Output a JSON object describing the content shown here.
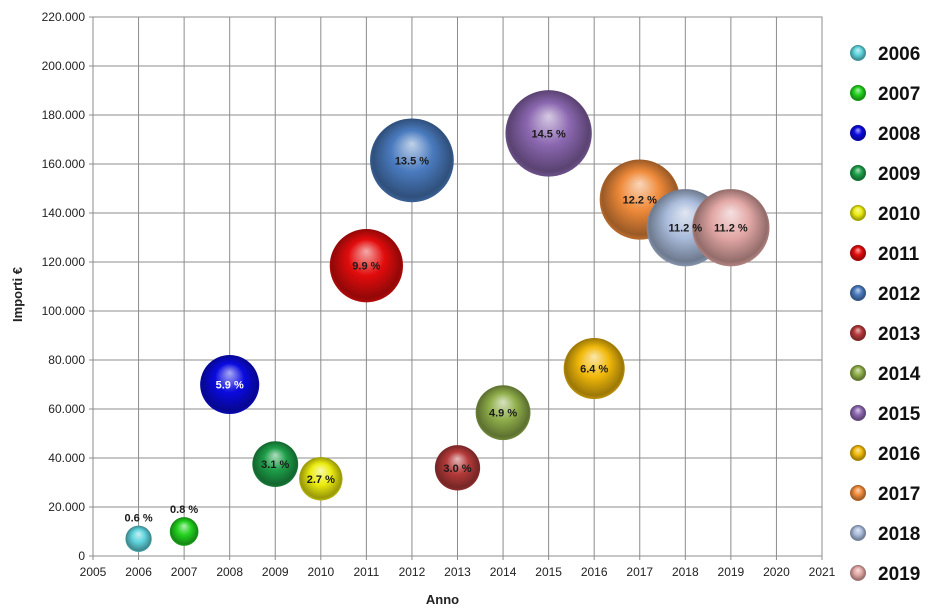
{
  "chart_data": {
    "type": "bubble",
    "xlabel": "Anno",
    "ylabel": "Importi  €",
    "xlim": [
      2005,
      2021
    ],
    "ylim": [
      0,
      220000
    ],
    "x_ticks": [
      "2005",
      "2006",
      "2007",
      "2008",
      "2009",
      "2010",
      "2011",
      "2012",
      "2013",
      "2014",
      "2015",
      "2016",
      "2017",
      "2018",
      "2019",
      "2020",
      "2021"
    ],
    "y_ticks": [
      "0",
      "20.000",
      "40.000",
      "60.000",
      "80.000",
      "100.000",
      "120.000",
      "140.000",
      "160.000",
      "180.000",
      "200.000",
      "220.000"
    ],
    "grid": true,
    "legend_position": "right",
    "series": [
      {
        "name": "2006",
        "x": 2006,
        "y": 7000,
        "percent": 0.6,
        "label": "0.6 %",
        "color": "#5fd3dc"
      },
      {
        "name": "2007",
        "x": 2007,
        "y": 10000,
        "percent": 0.8,
        "label": "0.8 %",
        "color": "#22d11e"
      },
      {
        "name": "2008",
        "x": 2008,
        "y": 70000,
        "percent": 5.9,
        "label": "5.9 %",
        "color": "#0a0ae0"
      },
      {
        "name": "2009",
        "x": 2009,
        "y": 37500,
        "percent": 3.1,
        "label": "3.1 %",
        "color": "#1d9e48"
      },
      {
        "name": "2010",
        "x": 2010,
        "y": 31500,
        "percent": 2.7,
        "label": "2.7 %",
        "color": "#ecec10"
      },
      {
        "name": "2011",
        "x": 2011,
        "y": 118500,
        "percent": 9.9,
        "label": "9.9 %",
        "color": "#e20c0c"
      },
      {
        "name": "2012",
        "x": 2012,
        "y": 161500,
        "percent": 13.5,
        "label": "13.5 %",
        "color": "#4a7bbf"
      },
      {
        "name": "2013",
        "x": 2013,
        "y": 36000,
        "percent": 3.0,
        "label": "3.0 %",
        "color": "#b53a3a"
      },
      {
        "name": "2014",
        "x": 2014,
        "y": 58500,
        "percent": 4.9,
        "label": "4.9 %",
        "color": "#8fae4a"
      },
      {
        "name": "2015",
        "x": 2015,
        "y": 172500,
        "percent": 14.5,
        "label": "14.5 %",
        "color": "#8b67b0"
      },
      {
        "name": "2016",
        "x": 2016,
        "y": 76500,
        "percent": 6.4,
        "label": "6.4 %",
        "color": "#f0b80a"
      },
      {
        "name": "2017",
        "x": 2017,
        "y": 145500,
        "percent": 12.2,
        "label": "12.2 %",
        "color": "#ef8a3a"
      },
      {
        "name": "2018",
        "x": 2018,
        "y": 134000,
        "percent": 11.2,
        "label": "11.2 %",
        "color": "#a9bbdb"
      },
      {
        "name": "2019",
        "x": 2019,
        "y": 134000,
        "percent": 11.2,
        "label": "11.2 %",
        "color": "#e2a7a5"
      }
    ]
  }
}
